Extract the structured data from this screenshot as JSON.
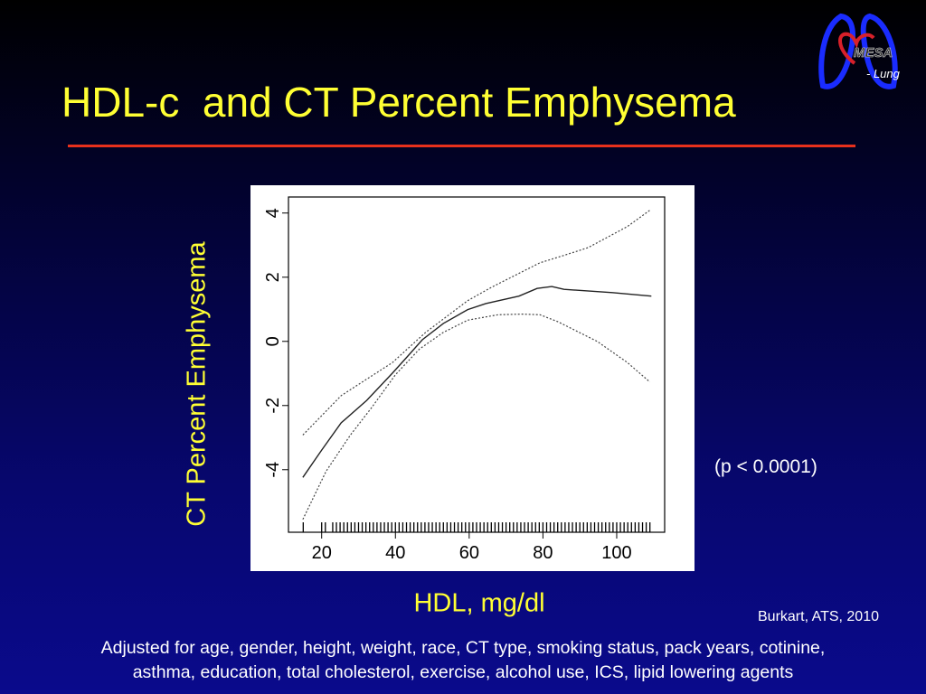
{
  "slide": {
    "title": "HDL-c  and CT Percent Emphysema",
    "p_value": "(p < 0.0001)",
    "citation": "Burkart, ATS, 2010",
    "footnote_lines": [
      "Adjusted for age, gender, height, weight, race, CT type, smoking status, pack years, cotinine,",
      "asthma, education, total cholesterol, exercise, alcohol use, ICS, lipid lowering agents"
    ],
    "logo": {
      "text": "MESA",
      "suffix": "- Lung"
    },
    "colors": {
      "title": "#ffff33",
      "rule": "#e8301c",
      "background_top": "#000000",
      "background_bottom": "#0a0a8c"
    }
  },
  "chart_data": {
    "type": "line",
    "xlabel": "HDL, mg/dl",
    "ylabel": "CT Percent Emphysema",
    "xlim": [
      11,
      113
    ],
    "ylim": [
      -5.95,
      4.5
    ],
    "x_ticks": [
      20,
      40,
      60,
      80,
      100
    ],
    "y_ticks": [
      -4,
      -2,
      0,
      2,
      4
    ],
    "grid": false,
    "series": [
      {
        "style": "solid",
        "points": [
          [
            14.9,
            -4.24
          ],
          [
            20,
            -3.39
          ],
          [
            25.3,
            -2.54
          ],
          [
            32.2,
            -1.84
          ],
          [
            39.2,
            -0.99
          ],
          [
            43.3,
            -0.47
          ],
          [
            47.3,
            0.05
          ],
          [
            53,
            0.56
          ],
          [
            59.6,
            0.99
          ],
          [
            64.5,
            1.18
          ],
          [
            73.5,
            1.41
          ],
          [
            78.4,
            1.65
          ],
          [
            82.4,
            1.71
          ],
          [
            85.7,
            1.62
          ],
          [
            98.8,
            1.52
          ],
          [
            109.4,
            1.41
          ]
        ]
      },
      {
        "style": "dotted",
        "points": [
          [
            14.9,
            -2.92
          ],
          [
            25.3,
            -1.69
          ],
          [
            39.2,
            -0.66
          ],
          [
            48.2,
            0.28
          ],
          [
            59.6,
            1.27
          ],
          [
            66.1,
            1.69
          ],
          [
            79.2,
            2.45
          ],
          [
            85.7,
            2.68
          ],
          [
            92.2,
            2.92
          ],
          [
            102.9,
            3.58
          ],
          [
            109,
            4.09
          ]
        ]
      },
      {
        "style": "dotted",
        "points": [
          [
            14.9,
            -5.55
          ],
          [
            21.2,
            -4.05
          ],
          [
            27.8,
            -2.92
          ],
          [
            33.5,
            -2.07
          ],
          [
            40,
            -1.04
          ],
          [
            46.5,
            -0.24
          ],
          [
            53,
            0.28
          ],
          [
            59.6,
            0.66
          ],
          [
            67.8,
            0.83
          ],
          [
            74.3,
            0.85
          ],
          [
            79.2,
            0.83
          ],
          [
            84.1,
            0.61
          ],
          [
            94.7,
            0
          ],
          [
            102.9,
            -0.66
          ],
          [
            109,
            -1.27
          ]
        ]
      }
    ],
    "rug": [
      15,
      20,
      21,
      23,
      24,
      25,
      26,
      27,
      28,
      29,
      30,
      31,
      32,
      33,
      34,
      35,
      36,
      37,
      38,
      39,
      40,
      41,
      42,
      43,
      44,
      45,
      46,
      47,
      48,
      49,
      50,
      51,
      52,
      53,
      54,
      55,
      56,
      57,
      58,
      59,
      60,
      61,
      62,
      63,
      64,
      65,
      66,
      67,
      68,
      69,
      70,
      71,
      72,
      73,
      74,
      75,
      76,
      77,
      78,
      79,
      80,
      81,
      82,
      83,
      84,
      85,
      86,
      87,
      88,
      89,
      90,
      91,
      92,
      93,
      94,
      95,
      96,
      97,
      98,
      99,
      100,
      101,
      102,
      103,
      104,
      105,
      106,
      107,
      108,
      109
    ]
  }
}
